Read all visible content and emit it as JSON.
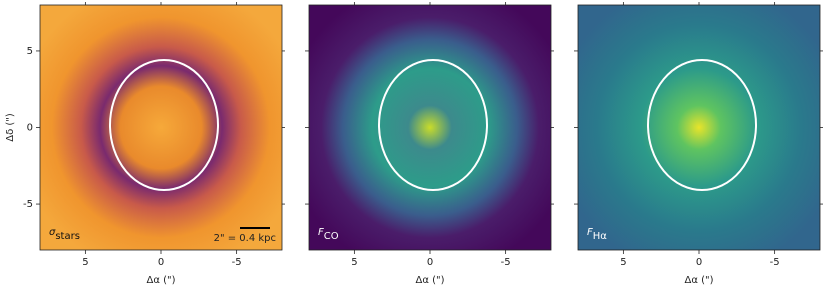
{
  "chart_data": [
    {
      "type": "image",
      "annotation": {
        "symbol": "σ",
        "subscript": "stars"
      },
      "scalebar": "2\" = 0.4 kpc",
      "xlabel": "Δα (\")",
      "ylabel": "Δδ (\")",
      "xlim": [
        8,
        -8
      ],
      "ylim": [
        -8,
        8
      ],
      "xticks": [
        5,
        0,
        -5
      ],
      "yticks": [
        5,
        0,
        -5
      ],
      "ytick_labels": true
    },
    {
      "type": "image",
      "annotation": {
        "symbol": "F",
        "subscript": "CO"
      },
      "xlabel": "Δα (\")",
      "xlim": [
        8,
        -8
      ],
      "ylim": [
        -8,
        8
      ],
      "xticks": [
        5,
        0,
        -5
      ],
      "yticks": [
        5,
        0,
        -5
      ],
      "ytick_labels": false
    },
    {
      "type": "image",
      "annotation": {
        "symbol": "F",
        "subscript": "Hα"
      },
      "xlabel": "Δα (\")",
      "xlim": [
        8,
        -8
      ],
      "ylim": [
        -8,
        8
      ],
      "xticks": [
        5,
        0,
        -5
      ],
      "yticks": [
        5,
        0,
        -5
      ],
      "ytick_labels": false
    }
  ]
}
